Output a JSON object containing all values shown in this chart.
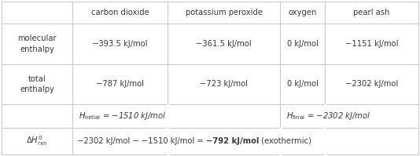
{
  "col_headers": [
    "",
    "carbon dioxide",
    "potassium peroxide",
    "oxygen",
    "pearl ash"
  ],
  "row1_label": "molecular\nenthalpy",
  "row1_vals": [
    "−393.5 kJ/mol",
    "−361.5 kJ/mol",
    "0 kJ/mol",
    "−1151 kJ/mol"
  ],
  "row2_label": "total\nenthalpy",
  "row2_vals": [
    "−787 kJ/mol",
    "−723 kJ/mol",
    "0 kJ/mol",
    "−2302 kJ/mol"
  ],
  "row3_left_math": "$H_\\mathrm{initial}$",
  "row3_left_rest": " = −1510 kJ/mol",
  "row3_right_math": "$H_\\mathrm{final}$",
  "row3_right_rest": " = −2302 kJ/mol",
  "row4_label_math": "$\\Delta H^0_\\mathrm{rxn}$",
  "row4_pre": "−2302 kJ/mol − −1510 kJ/mol = ",
  "row4_bold": "−792 kJ/mol",
  "row4_post": " (exothermic)",
  "bg_color": "#ffffff",
  "text_color": "#3a3a3a",
  "grid_color": "#c8c8c8"
}
